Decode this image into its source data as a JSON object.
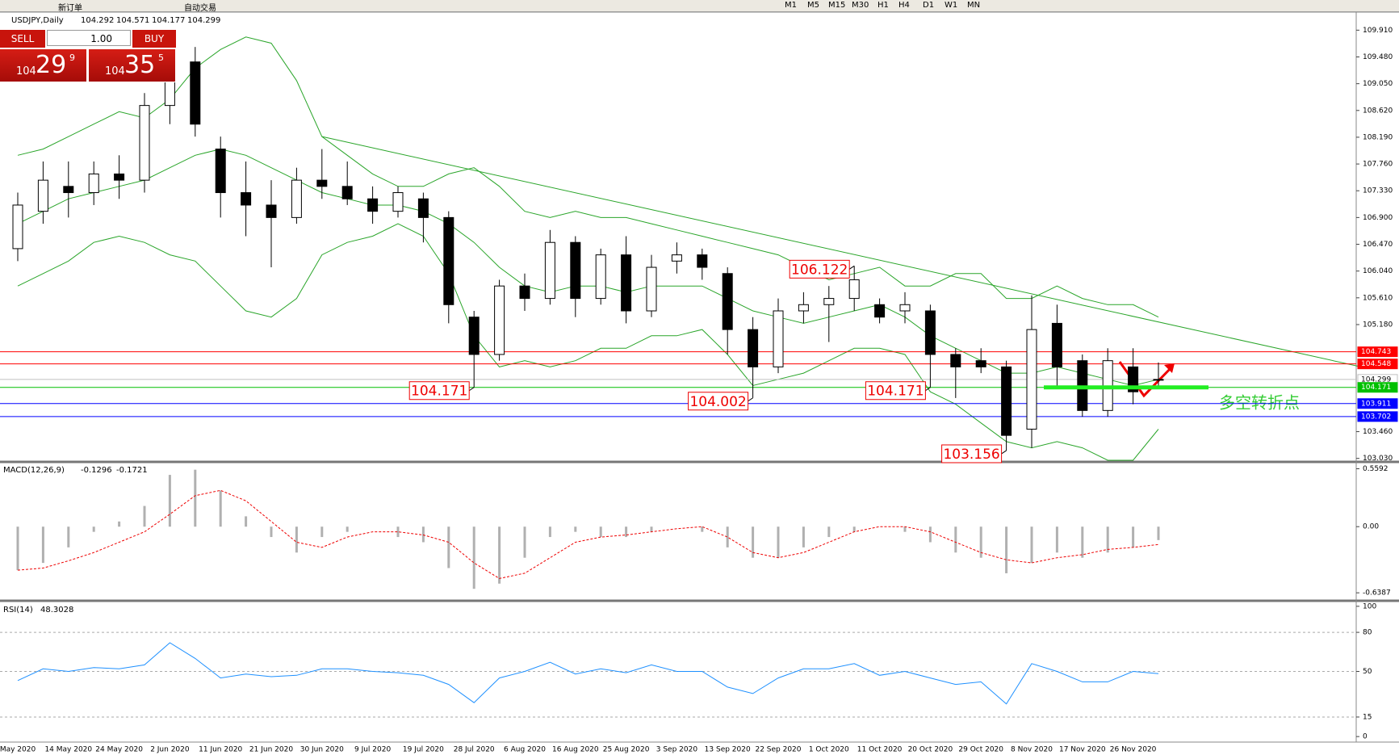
{
  "toolbar": {
    "items": [
      "新订单",
      "自动交易"
    ],
    "timeframes": [
      "M1",
      "M5",
      "M15",
      "M30",
      "H1",
      "H4",
      "D1",
      "W1",
      "MN"
    ]
  },
  "order_panel": {
    "sell": "SELL",
    "lots": "1.00",
    "buy": "BUY",
    "bid": [
      "104",
      "29",
      "9"
    ],
    "ask": [
      "104",
      "35",
      "5"
    ]
  },
  "chart_data": [
    {
      "type": "candlestick",
      "title": "USDJPY,Daily",
      "note": "多空转折点",
      "categories": [
        "May 2020",
        null,
        "14 May 2020",
        null,
        "24 May 2020",
        null,
        "2 Jun 2020",
        null,
        "11 Jun 2020",
        null,
        "21 Jun 2020",
        null,
        "30 Jun 2020",
        null,
        "9 Jul 2020",
        null,
        "19 Jul 2020",
        null,
        "28 Jul 2020",
        null,
        "6 Aug 2020",
        null,
        "16 Aug 2020",
        null,
        "25 Aug 2020",
        null,
        "3 Sep 2020",
        null,
        "13 Sep 2020",
        null,
        "22 Sep 2020",
        null,
        "1 Oct 2020",
        null,
        "11 Oct 2020",
        null,
        "20 Oct 2020",
        null,
        "29 Oct 2020",
        null,
        "8 Nov 2020",
        null,
        "17 Nov 2020",
        null,
        "26 Nov 2020",
        null
      ],
      "open": [
        106.4,
        107.0,
        107.4,
        107.3,
        107.6,
        107.5,
        108.7,
        109.4,
        108.0,
        107.3,
        107.1,
        106.9,
        107.5,
        107.4,
        107.2,
        107.0,
        107.2,
        106.9,
        105.3,
        104.7,
        105.8,
        105.6,
        106.5,
        105.6,
        106.3,
        105.4,
        106.2,
        106.3,
        106.0,
        105.1,
        104.5,
        105.4,
        105.5,
        105.6,
        105.5,
        105.4,
        105.4,
        104.7,
        104.6,
        104.5,
        103.5,
        105.2,
        104.6,
        103.8,
        104.5,
        104.292
      ],
      "high": [
        107.3,
        107.8,
        107.8,
        107.8,
        107.9,
        108.9,
        109.5,
        109.64,
        108.2,
        107.8,
        107.5,
        107.7,
        108.0,
        107.8,
        107.4,
        107.4,
        107.3,
        107.0,
        105.4,
        105.9,
        106.0,
        106.7,
        106.6,
        106.4,
        106.6,
        106.3,
        106.5,
        106.4,
        106.1,
        105.3,
        105.6,
        105.7,
        105.8,
        106.122,
        105.6,
        105.7,
        105.5,
        104.8,
        104.8,
        104.6,
        105.65,
        105.5,
        104.7,
        104.8,
        104.8,
        104.571
      ],
      "low": [
        106.2,
        106.8,
        106.9,
        107.1,
        107.2,
        107.3,
        108.4,
        108.2,
        106.9,
        106.6,
        106.1,
        106.8,
        107.2,
        107.1,
        106.8,
        106.9,
        106.5,
        105.2,
        104.171,
        104.6,
        105.4,
        105.5,
        105.3,
        105.5,
        105.2,
        105.3,
        106.0,
        105.9,
        104.7,
        104.002,
        104.4,
        105.2,
        104.9,
        105.4,
        105.2,
        105.2,
        104.171,
        104.0,
        104.4,
        103.156,
        103.2,
        104.2,
        103.7,
        103.7,
        103.9,
        104.177
      ],
      "close": [
        107.1,
        107.5,
        107.3,
        107.6,
        107.5,
        108.7,
        109.3,
        108.4,
        107.3,
        107.1,
        106.9,
        107.5,
        107.4,
        107.2,
        107.0,
        107.3,
        106.9,
        105.5,
        104.7,
        105.8,
        105.6,
        106.5,
        105.6,
        106.3,
        105.4,
        106.1,
        106.3,
        106.1,
        105.1,
        104.5,
        105.4,
        105.5,
        105.6,
        105.9,
        105.3,
        105.5,
        104.7,
        104.5,
        104.5,
        103.4,
        105.1,
        104.5,
        103.8,
        104.6,
        104.1,
        104.299
      ],
      "color_up": "#ffffff",
      "color_down": "#000000",
      "series": [
        {
          "color": "#2aa52a",
          "values": [
            107.9,
            108.0,
            108.2,
            108.4,
            108.6,
            108.5,
            108.8,
            109.3,
            109.6,
            109.8,
            109.7,
            109.1,
            108.2,
            107.9,
            107.6,
            107.4,
            107.4,
            107.6,
            107.7,
            107.4,
            107.0,
            106.9,
            107.0,
            106.9,
            106.9,
            106.8,
            106.7,
            106.6,
            106.5,
            106.4,
            106.3,
            106.1,
            105.9,
            106.0,
            106.1,
            105.8,
            105.8,
            106.0,
            106.0,
            105.6,
            105.6,
            105.8,
            105.6,
            105.5,
            105.5,
            105.3
          ]
        },
        {
          "color": "#2aa52a",
          "values": [
            106.8,
            107.0,
            107.2,
            107.3,
            107.4,
            107.5,
            107.7,
            107.9,
            108.0,
            107.9,
            107.7,
            107.5,
            107.3,
            107.2,
            107.1,
            107.1,
            107.0,
            106.8,
            106.5,
            106.1,
            105.8,
            105.7,
            105.8,
            105.8,
            105.7,
            105.8,
            105.8,
            105.8,
            105.6,
            105.4,
            105.3,
            105.2,
            105.3,
            105.4,
            105.5,
            105.3,
            105.0,
            104.8,
            104.6,
            104.4,
            104.4,
            104.5,
            104.4,
            104.3,
            104.2,
            104.3
          ]
        },
        {
          "color": "#2aa52a",
          "values": [
            105.8,
            106.0,
            106.2,
            106.5,
            106.6,
            106.5,
            106.3,
            106.2,
            105.8,
            105.4,
            105.3,
            105.6,
            106.3,
            106.5,
            106.6,
            106.8,
            106.6,
            106.0,
            105.0,
            104.5,
            104.6,
            104.5,
            104.6,
            104.8,
            104.8,
            105.0,
            105.0,
            105.1,
            104.7,
            104.2,
            104.3,
            104.4,
            104.6,
            104.8,
            104.8,
            104.7,
            104.1,
            103.9,
            103.6,
            103.3,
            103.2,
            103.3,
            103.2,
            103.0,
            103.0,
            103.5
          ]
        }
      ],
      "trendline": {
        "color": "#2aa52a",
        "x": [
          12,
          53
        ],
        "y": [
          108.2,
          104.5
        ]
      },
      "levels": [
        {
          "value": 104.743,
          "color": "#ff0000",
          "text_color": "#ffffff"
        },
        {
          "value": 104.548,
          "color": "#ff0000",
          "text_color": "#ffffff"
        },
        {
          "value": 104.299,
          "color": "#c0c0c0",
          "text_color": "#000000"
        },
        {
          "value": 104.171,
          "color": "#00c000",
          "text_color": "#ffffff"
        },
        {
          "value": 103.911,
          "color": "#0000ff",
          "text_color": "#ffffff"
        },
        {
          "value": 103.702,
          "color": "#0000ff",
          "text_color": "#ffffff"
        }
      ],
      "ylim": [
        103.0,
        110.2
      ],
      "yticks": [
        {
          "value": 103.03,
          "label": "103.030"
        },
        {
          "value": 103.46,
          "label": "103.460"
        },
        {
          "value": 105.18,
          "label": "105.180"
        },
        {
          "value": 105.61,
          "label": "105.610"
        },
        {
          "value": 106.04,
          "label": "106.040"
        },
        {
          "value": 106.47,
          "label": "106.470"
        },
        {
          "value": 106.9,
          "label": "106.900"
        },
        {
          "value": 107.33,
          "label": "107.330"
        },
        {
          "value": 107.76,
          "label": "107.760"
        },
        {
          "value": 108.19,
          "label": "108.190"
        },
        {
          "value": 108.62,
          "label": "108.620"
        },
        {
          "value": 109.05,
          "label": "109.050"
        },
        {
          "value": 109.48,
          "label": "109.480"
        },
        {
          "value": 109.91,
          "label": "109.910"
        }
      ]
    },
    {
      "type": "macd",
      "title": "MACD(12,26,9)",
      "series": [
        {
          "name": "histogram",
          "color": "#b0b0b0",
          "values": [
            -0.42,
            -0.35,
            -0.2,
            -0.05,
            0.05,
            0.2,
            0.5,
            0.55,
            0.35,
            0.1,
            -0.1,
            -0.25,
            -0.1,
            -0.05,
            0,
            -0.1,
            -0.15,
            -0.4,
            -0.6,
            -0.55,
            -0.3,
            -0.1,
            -0.05,
            -0.1,
            -0.1,
            -0.05,
            0.0,
            -0.05,
            -0.2,
            -0.3,
            -0.3,
            -0.2,
            -0.1,
            -0.05,
            0.0,
            -0.05,
            -0.15,
            -0.25,
            -0.3,
            -0.45,
            -0.35,
            -0.25,
            -0.3,
            -0.25,
            -0.2,
            -0.1296
          ]
        },
        {
          "name": "signal",
          "color": "#ee0000",
          "values": [
            -0.42,
            -0.4,
            -0.33,
            -0.25,
            -0.15,
            -0.05,
            0.12,
            0.3,
            0.35,
            0.25,
            0.05,
            -0.15,
            -0.2,
            -0.1,
            -0.05,
            -0.05,
            -0.08,
            -0.15,
            -0.35,
            -0.5,
            -0.45,
            -0.3,
            -0.15,
            -0.1,
            -0.08,
            -0.05,
            -0.02,
            0.0,
            -0.1,
            -0.25,
            -0.3,
            -0.25,
            -0.15,
            -0.05,
            0.0,
            0.0,
            -0.05,
            -0.15,
            -0.25,
            -0.32,
            -0.35,
            -0.3,
            -0.27,
            -0.22,
            -0.2,
            -0.1721
          ]
        }
      ],
      "ylim": [
        -0.7,
        0.61
      ],
      "yticks": [
        -0.6387,
        {
          "value": 0,
          "label": "0.00"
        },
        0.5592
      ]
    },
    {
      "type": "rsi",
      "title": "RSI(14)",
      "series": [
        {
          "color": "#1e90ff",
          "values": [
            43,
            52,
            50,
            53,
            52,
            55,
            72,
            60,
            45,
            48,
            46,
            47,
            52,
            52,
            50,
            49,
            47,
            40,
            26,
            45,
            50,
            57,
            48,
            52,
            49,
            55,
            50,
            50,
            38,
            33,
            45,
            52,
            52,
            56,
            47,
            50,
            45,
            40,
            42,
            25,
            56,
            50,
            42,
            42,
            50,
            48.3028
          ]
        }
      ],
      "ylim": [
        -3,
        103
      ],
      "yticks": [
        0,
        15,
        50,
        80,
        100
      ]
    }
  ]
}
